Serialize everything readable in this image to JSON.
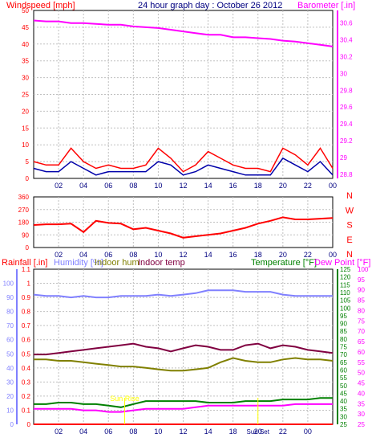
{
  "chart_data": [
    {
      "type": "line",
      "title": "24 hour graph day : October 26 2012",
      "left_axis_label": "Windspeed [mph]",
      "right_axis_label": "Barometer [.in]",
      "x_ticks": [
        "02",
        "04",
        "06",
        "08",
        "10",
        "12",
        "14",
        "16",
        "18",
        "20",
        "22",
        "00"
      ],
      "y_left_ticks": [
        "0",
        "5",
        "10",
        "15",
        "20",
        "25",
        "30",
        "35",
        "40",
        "45",
        "50"
      ],
      "y_left_range": [
        0,
        50
      ],
      "y_right_ticks": [
        "28.8",
        "29",
        "29.2",
        "29.4",
        "29.6",
        "29.8",
        "30",
        "30.2",
        "30.4",
        "30.6"
      ],
      "y_right_range": [
        28.75,
        30.75
      ],
      "grid": true,
      "series": [
        {
          "name": "Barometer",
          "color": "#ff00ff",
          "axis": "right",
          "x": [
            0,
            1,
            2,
            3,
            4,
            5,
            6,
            7,
            8,
            9,
            10,
            11,
            12,
            13,
            14,
            15,
            16,
            17,
            18,
            19,
            20,
            21,
            22,
            23,
            24
          ],
          "values": [
            30.63,
            30.62,
            30.62,
            30.6,
            30.6,
            30.59,
            30.58,
            30.58,
            30.56,
            30.55,
            30.54,
            30.52,
            30.5,
            30.48,
            30.46,
            30.46,
            30.43,
            30.43,
            30.42,
            30.41,
            30.39,
            30.38,
            30.36,
            30.34,
            30.32
          ]
        },
        {
          "name": "Gust",
          "color": "#ff0000",
          "axis": "left",
          "x": [
            0,
            1,
            2,
            3,
            4,
            5,
            6,
            7,
            8,
            9,
            10,
            11,
            12,
            13,
            14,
            15,
            16,
            17,
            18,
            19,
            20,
            21,
            22,
            23,
            24
          ],
          "values": [
            5,
            4,
            4,
            9,
            5,
            3,
            4,
            3,
            3,
            4,
            9,
            6,
            2,
            4,
            8,
            6,
            4,
            3,
            3,
            2,
            9,
            7,
            4,
            9,
            3
          ]
        },
        {
          "name": "Average",
          "color": "#0000aa",
          "axis": "left",
          "x": [
            0,
            1,
            2,
            3,
            4,
            5,
            6,
            7,
            8,
            9,
            10,
            11,
            12,
            13,
            14,
            15,
            16,
            17,
            18,
            19,
            20,
            21,
            22,
            23,
            24
          ],
          "values": [
            3,
            2,
            2,
            5,
            3,
            1,
            2,
            2,
            2,
            2,
            5,
            4,
            1,
            2,
            4,
            3,
            2,
            1,
            1,
            1,
            6,
            4,
            2,
            5,
            1
          ]
        }
      ]
    },
    {
      "type": "line",
      "y_right_labels": [
        "N",
        "W",
        "S",
        "E",
        "N"
      ],
      "y_left_ticks": [
        "0",
        "90",
        "180",
        "270",
        "360"
      ],
      "y_left_range": [
        0,
        360
      ],
      "x_ticks": [
        "02",
        "04",
        "06",
        "08",
        "10",
        "12",
        "14",
        "16",
        "18",
        "20",
        "22",
        "00"
      ],
      "grid": true,
      "series": [
        {
          "name": "Wind direction",
          "color": "#ff0000",
          "x": [
            0,
            1,
            2,
            3,
            4,
            5,
            6,
            7,
            8,
            9,
            10,
            11,
            12,
            13,
            14,
            15,
            16,
            17,
            18,
            19,
            20,
            21,
            22,
            23,
            24
          ],
          "values": [
            160,
            165,
            165,
            170,
            110,
            190,
            175,
            170,
            130,
            140,
            120,
            100,
            70,
            80,
            90,
            100,
            120,
            140,
            170,
            190,
            215,
            200,
            200,
            205,
            210
          ]
        }
      ]
    },
    {
      "type": "line",
      "legend": [
        "Rainfall [.in]",
        "Humidity [%]",
        "Indoor hum",
        "Indoor temp",
        "Temperature [°F]",
        "Dew Point [°F]"
      ],
      "y_left_ticks": [
        "0",
        "0.1",
        "0.2",
        "0.3",
        "0.4",
        "0.5",
        "0.6",
        "0.7",
        "0.8",
        "0.9",
        "1",
        "1.1"
      ],
      "y_left_range": [
        0,
        1.1
      ],
      "y_humidity_ticks": [
        "0",
        "10",
        "20",
        "30",
        "40",
        "50",
        "60",
        "70",
        "80",
        "90",
        "100"
      ],
      "y_humidity_range": [
        0,
        110
      ],
      "y_temp_ticks": [
        "25",
        "30",
        "35",
        "40",
        "45",
        "50",
        "55",
        "60",
        "65",
        "70",
        "75",
        "80",
        "85",
        "90",
        "95",
        "100",
        "105",
        "110",
        "115",
        "120",
        "125"
      ],
      "y_temp_range": [
        25,
        125
      ],
      "y_dew_ticks": [
        "25",
        "30",
        "35",
        "40",
        "45",
        "50",
        "55",
        "60",
        "65",
        "70",
        "75",
        "80",
        "85",
        "90",
        "95",
        "100"
      ],
      "y_dew_range": [
        25,
        100
      ],
      "x_ticks": [
        "02",
        "04",
        "06",
        "08",
        "10",
        "12",
        "14",
        "16",
        "18",
        "20",
        "22",
        "00"
      ],
      "annotations": [
        "Sun Rise",
        "Sun Set"
      ],
      "grid": true,
      "series": [
        {
          "name": "Rainfall [.in]",
          "color": "#ff0000",
          "axis": "rain",
          "x": [
            0,
            24
          ],
          "values": [
            0,
            0
          ]
        },
        {
          "name": "Humidity [%]",
          "color": "#8080ff",
          "axis": "hum",
          "x": [
            0,
            1,
            2,
            3,
            4,
            5,
            6,
            7,
            8,
            9,
            10,
            11,
            12,
            13,
            14,
            15,
            16,
            17,
            18,
            19,
            20,
            21,
            22,
            23,
            24
          ],
          "values": [
            92,
            91,
            91,
            90,
            91,
            90,
            90,
            91,
            91,
            91,
            92,
            91,
            92,
            93,
            95,
            95,
            95,
            94,
            94,
            94,
            92,
            91,
            91,
            91,
            91
          ]
        },
        {
          "name": "Indoor hum",
          "color": "#808000",
          "axis": "hum",
          "x": [
            0,
            1,
            2,
            3,
            4,
            5,
            6,
            7,
            8,
            9,
            10,
            11,
            12,
            13,
            14,
            15,
            16,
            17,
            18,
            19,
            20,
            21,
            22,
            23,
            24
          ],
          "values": [
            46,
            46,
            45,
            45,
            44,
            43,
            42,
            41,
            41,
            40,
            39,
            38,
            38,
            39,
            40,
            44,
            47,
            45,
            44,
            44,
            46,
            47,
            46,
            46,
            45
          ]
        },
        {
          "name": "Indoor temp",
          "color": "#800040",
          "axis": "temp",
          "x": [
            0,
            1,
            2,
            3,
            4,
            5,
            6,
            7,
            8,
            9,
            10,
            11,
            12,
            13,
            14,
            15,
            16,
            17,
            18,
            19,
            20,
            21,
            22,
            23,
            24
          ],
          "values": [
            70,
            70,
            71,
            72,
            73,
            74,
            75,
            76,
            77,
            75,
            74,
            72,
            74,
            76,
            75,
            73,
            73,
            76,
            77,
            74,
            76,
            75,
            73,
            72,
            71
          ]
        },
        {
          "name": "Temperature [°F]",
          "color": "#008000",
          "axis": "temp",
          "x": [
            0,
            1,
            2,
            3,
            4,
            5,
            6,
            7,
            8,
            9,
            10,
            11,
            12,
            13,
            14,
            15,
            16,
            17,
            18,
            19,
            20,
            21,
            22,
            23,
            24
          ],
          "values": [
            38,
            38,
            39,
            39,
            38,
            38,
            37,
            36,
            38,
            40,
            40,
            40,
            40,
            40,
            39,
            39,
            39,
            40,
            40,
            40,
            41,
            41,
            41,
            42,
            42
          ]
        },
        {
          "name": "Dew Point [°F]",
          "color": "#ff00ff",
          "axis": "dew",
          "x": [
            0,
            1,
            2,
            3,
            4,
            5,
            6,
            7,
            8,
            9,
            10,
            11,
            12,
            13,
            14,
            15,
            16,
            17,
            18,
            19,
            20,
            21,
            22,
            23,
            24
          ],
          "values": [
            35,
            35,
            35,
            35,
            34,
            34,
            33,
            33,
            34,
            35,
            35,
            35,
            35,
            36,
            37,
            37,
            37,
            37,
            37,
            37,
            37,
            38,
            38,
            38,
            38
          ]
        }
      ]
    }
  ]
}
